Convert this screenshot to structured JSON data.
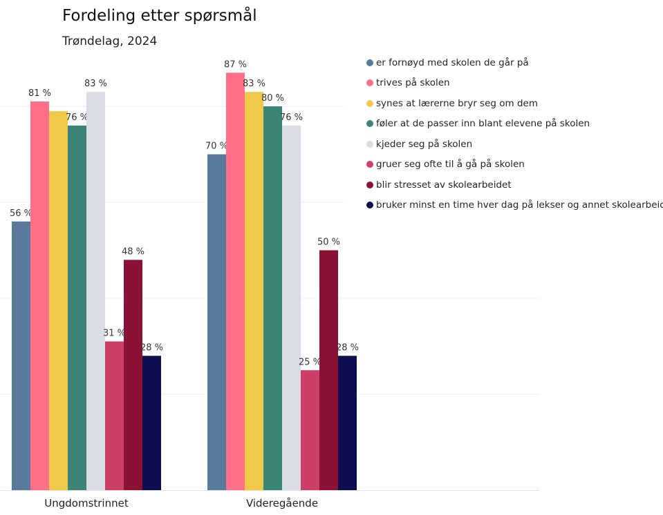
{
  "chart_data": {
    "type": "bar",
    "title": "Fordeling etter spørsmål",
    "subtitle": "Trøndelag, 2024",
    "categories": [
      "Ungdomstrinnet",
      "Videregående"
    ],
    "ylim": [
      0,
      100
    ],
    "grid": true,
    "legend_placement": "right",
    "series": [
      {
        "name": "er fornøyd med skolen de går på",
        "color": "#5A7A9B",
        "values": [
          56,
          70
        ],
        "labels": [
          "56 %",
          "70 %"
        ]
      },
      {
        "name": "trives på skolen",
        "color": "#FF7088",
        "values": [
          81,
          87
        ],
        "labels": [
          "81 %",
          "87 %"
        ]
      },
      {
        "name": "synes at lærerne bryr seg om dem",
        "color": "#F0C84A",
        "values": [
          79,
          83
        ],
        "labels": [
          null,
          "83 %"
        ]
      },
      {
        "name": "føler at de passer inn blant elevene på skolen",
        "color": "#3D8478",
        "values": [
          76,
          80
        ],
        "labels": [
          "76 %",
          "80 %"
        ]
      },
      {
        "name": "kjeder seg på skolen",
        "color": "#D8DCE3",
        "values": [
          83,
          76
        ],
        "labels": [
          "83 %",
          "76 %"
        ]
      },
      {
        "name": "gruer seg ofte til å gå på skolen",
        "color": "#CC4068",
        "values": [
          31,
          25
        ],
        "labels": [
          "31 %",
          "25 %"
        ]
      },
      {
        "name": "blir stresset av skolearbeidet",
        "color": "#8A1234",
        "values": [
          48,
          50
        ],
        "labels": [
          "48 %",
          "50 %"
        ]
      },
      {
        "name": "bruker minst en time hver dag på lekser og annet skolearbeid",
        "color": "#0E0E4E",
        "values": [
          28,
          28
        ],
        "labels": [
          "28 %",
          "28 %"
        ]
      }
    ]
  }
}
